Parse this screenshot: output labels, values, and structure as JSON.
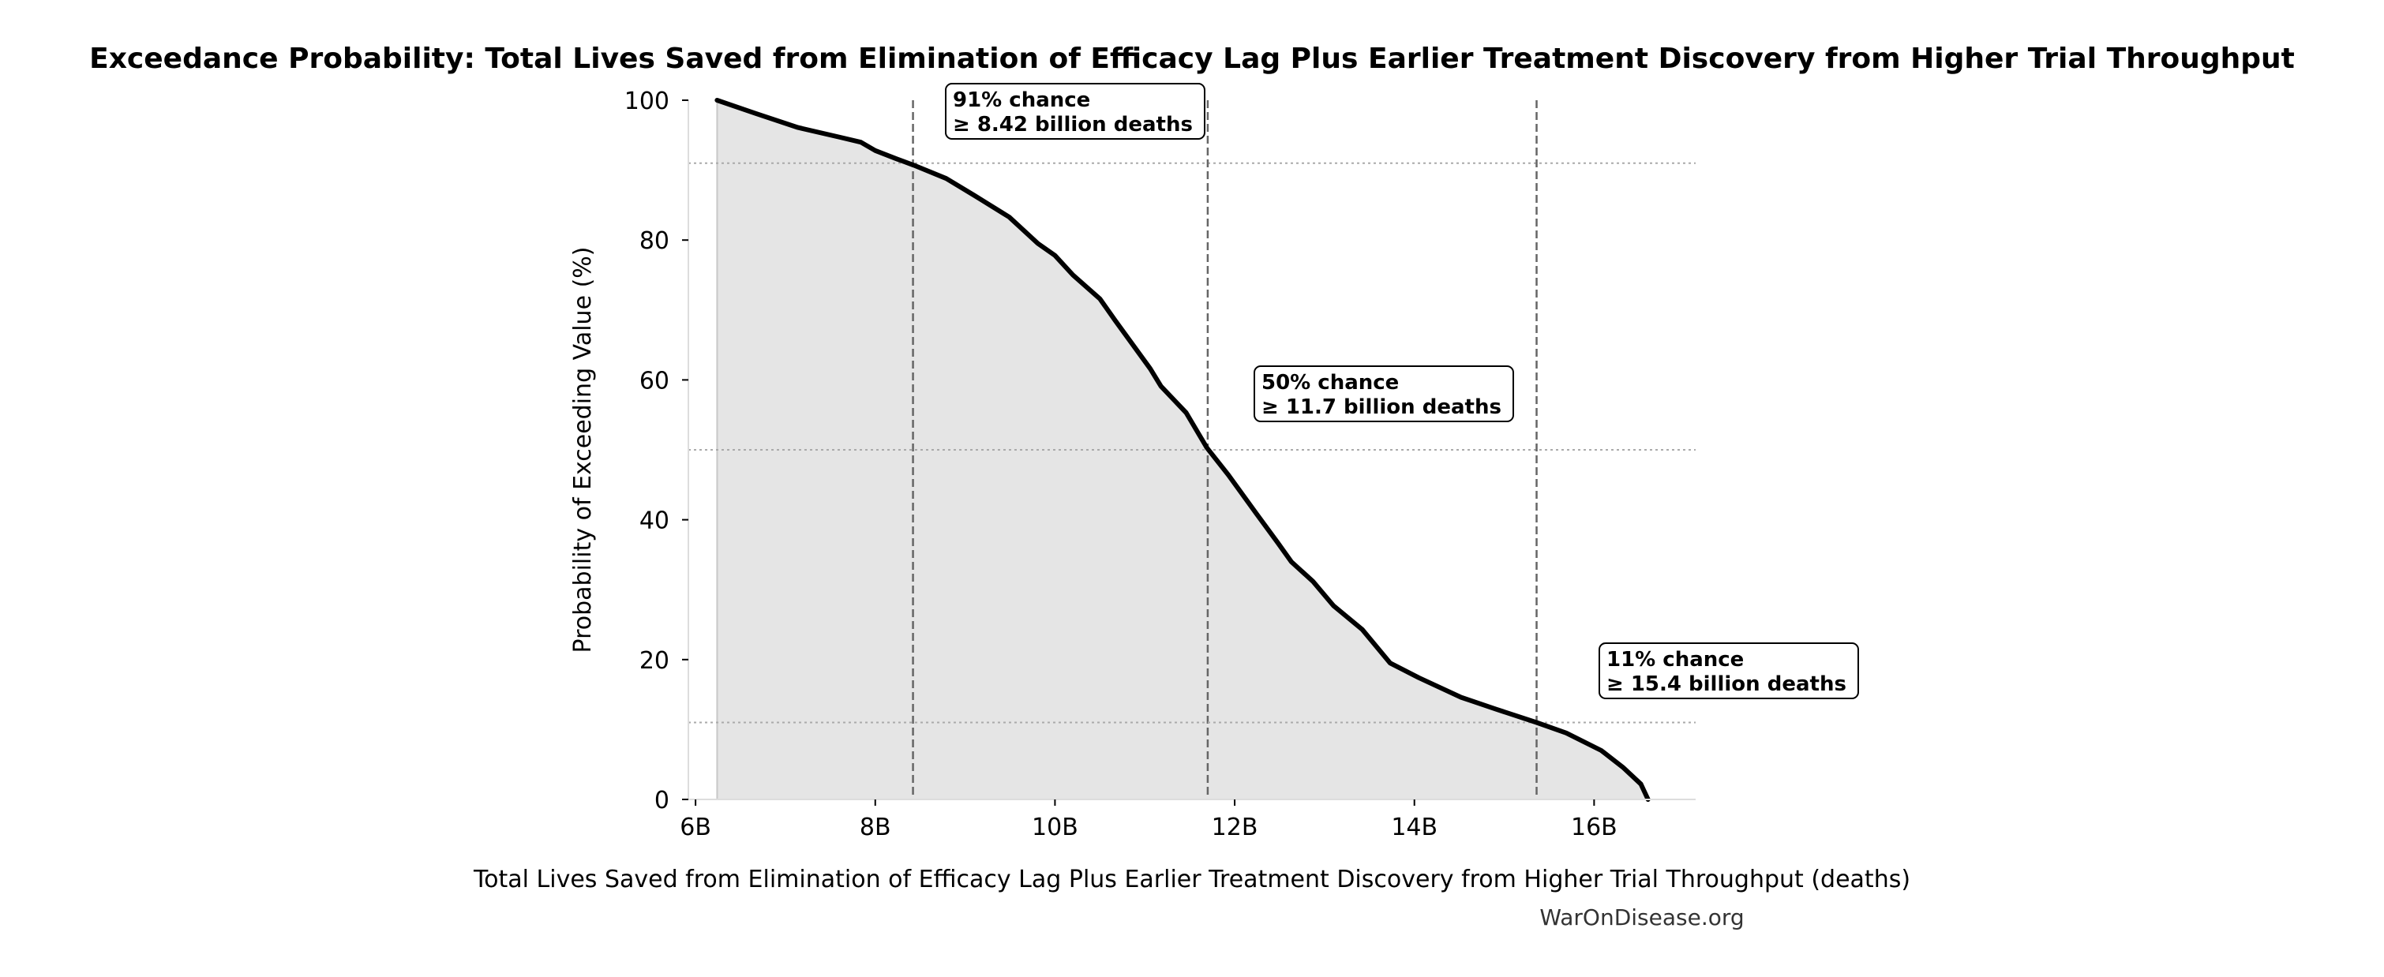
{
  "chart_data": {
    "type": "area",
    "title": "Exceedance Probability: Total Lives Saved from Elimination of Efficacy Lag Plus Earlier Treatment Discovery from Higher Trial Throughput",
    "xlabel": "Total Lives Saved from Elimination of Efficacy Lag Plus Earlier Treatment Discovery from Higher Trial Throughput (deaths)",
    "ylabel": "Probability of Exceeding Value (%)",
    "watermark": "WarOnDisease.org",
    "xlim": [
      5.92,
      17.13
    ],
    "ylim": [
      0,
      100
    ],
    "x_unit": "billion deaths",
    "x_ticks": [
      {
        "value": 6,
        "label": "6B"
      },
      {
        "value": 8,
        "label": "8B"
      },
      {
        "value": 10,
        "label": "10B"
      },
      {
        "value": 12,
        "label": "12B"
      },
      {
        "value": 14,
        "label": "14B"
      },
      {
        "value": 16,
        "label": "16B"
      }
    ],
    "y_ticks": [
      {
        "value": 0,
        "label": "0"
      },
      {
        "value": 20,
        "label": "20"
      },
      {
        "value": 40,
        "label": "40"
      },
      {
        "value": 60,
        "label": "60"
      },
      {
        "value": 80,
        "label": "80"
      },
      {
        "value": 100,
        "label": "100"
      }
    ],
    "grid": false,
    "colors": {
      "line": "#000000",
      "fill": "#e5e5e5",
      "ref_line": "#666666",
      "hline": "#aaaaaa"
    },
    "series": [
      {
        "x": [
          6.24,
          6.67,
          7.14,
          7.61,
          7.84,
          8.0,
          8.24,
          8.43,
          8.79,
          9.1,
          9.49,
          9.81,
          10.0,
          10.2,
          10.5,
          10.67,
          11.06,
          11.18,
          11.46,
          11.69,
          11.93,
          12.24,
          12.48,
          12.63,
          12.87,
          13.1,
          13.42,
          13.73,
          14.05,
          14.52,
          14.91,
          15.36,
          15.69,
          16.08,
          16.32,
          16.52,
          16.6
        ],
        "y": [
          100,
          98.1,
          96.1,
          94.7,
          94.0,
          92.8,
          91.6,
          90.7,
          88.8,
          86.4,
          83.3,
          79.5,
          77.8,
          75,
          71.6,
          68.5,
          61.6,
          59.1,
          55.3,
          50.3,
          46.4,
          40.9,
          36.7,
          34,
          31.2,
          27.7,
          24.3,
          19.5,
          17.4,
          14.6,
          12.9,
          11,
          9.5,
          7,
          4.6,
          2.2,
          0
        ]
      }
    ],
    "reference_lines": [
      {
        "x": 8.42,
        "y": 91,
        "line1": "91% chance",
        "line2": "≥ 8.42 billion deaths"
      },
      {
        "x": 11.7,
        "y": 50,
        "line1": "50% chance",
        "line2": "≥ 11.7 billion deaths"
      },
      {
        "x": 15.36,
        "y": 11,
        "line1": "11% chance",
        "line2": "≥ 15.4 billion deaths"
      }
    ]
  }
}
